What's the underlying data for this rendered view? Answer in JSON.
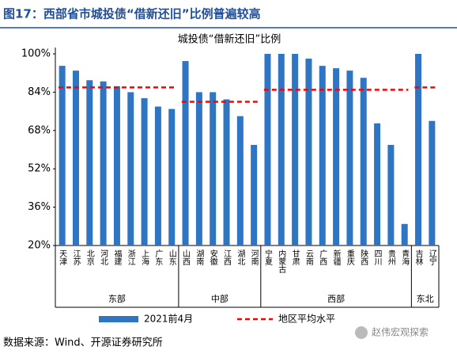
{
  "header": {
    "title": "图17：西部省市城投债“借新还旧”比例普遍较高"
  },
  "chart_data": {
    "type": "bar",
    "title": "城投债“借新还旧”比例",
    "groups": [
      {
        "name": "东部",
        "categories": [
          "天津",
          "江苏",
          "北京",
          "河北",
          "福建",
          "浙江",
          "上海",
          "广东",
          "山东"
        ],
        "average": 86
      },
      {
        "name": "中部",
        "categories": [
          "山西",
          "湖南",
          "安徽",
          "江西",
          "湖北",
          "河南"
        ],
        "average": 80
      },
      {
        "name": "西部",
        "categories": [
          "宁夏",
          "内蒙古",
          "甘肃",
          "云南",
          "广西",
          "新疆",
          "重庆",
          "陕西",
          "四川",
          "贵州",
          "青海"
        ],
        "average": 85
      },
      {
        "name": "东北",
        "categories": [
          "吉林",
          "辽宁"
        ],
        "average": 86
      }
    ],
    "series": [
      {
        "name": "2021前4月",
        "color": "#2e75c4",
        "values": [
          95,
          93,
          89,
          88.5,
          86.5,
          84,
          81.5,
          78,
          77,
          97,
          84,
          84,
          81,
          74,
          62,
          100,
          100,
          100,
          98,
          95,
          94,
          93,
          90,
          71,
          62,
          29,
          100,
          72
        ]
      }
    ],
    "average_line": {
      "name": "地区平均水平",
      "color": "#ff0000"
    },
    "ylim": [
      20,
      100
    ],
    "yticks": [
      {
        "value": 20,
        "label": "20%"
      },
      {
        "value": 36,
        "label": "36%"
      },
      {
        "value": 52,
        "label": "52%"
      },
      {
        "value": 68,
        "label": "68%"
      },
      {
        "value": 84,
        "label": "84%"
      },
      {
        "value": 100,
        "label": "100%"
      }
    ]
  },
  "footer": {
    "source": "数据来源：Wind、开源证券研究所",
    "watermark": "赵伟宏观探索"
  }
}
